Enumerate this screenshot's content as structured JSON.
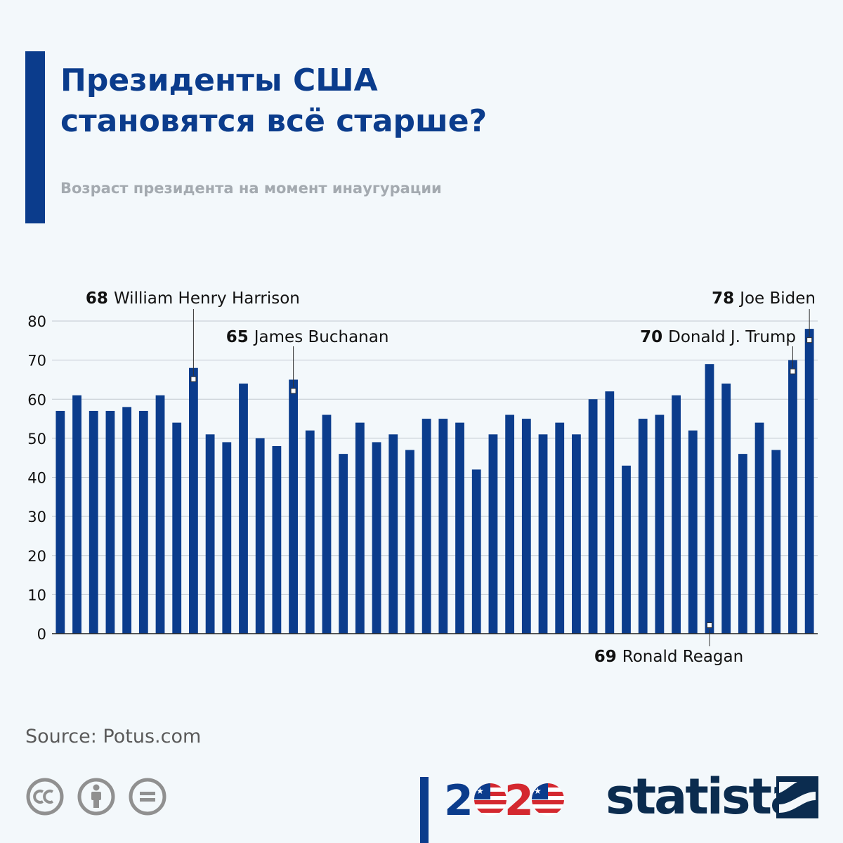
{
  "header": {
    "title": "Президенты  США\nстановятся всё старше?",
    "subtitle": "Возраст президента на момент инаугурации"
  },
  "chart_data": {
    "type": "bar",
    "title": "Президенты  США становятся всё старше?",
    "subtitle": "Возраст президента на момент инаугурации",
    "xlabel": "",
    "ylabel": "",
    "ylim": [
      0,
      80
    ],
    "yticks": [
      0,
      10,
      20,
      30,
      40,
      50,
      60,
      70,
      80
    ],
    "grid": true,
    "color": "#0b3c8c",
    "values": [
      57,
      61,
      57,
      57,
      58,
      57,
      61,
      54,
      68,
      51,
      49,
      64,
      50,
      48,
      65,
      52,
      56,
      46,
      54,
      49,
      51,
      47,
      55,
      55,
      54,
      42,
      51,
      56,
      55,
      51,
      54,
      51,
      60,
      62,
      43,
      55,
      56,
      61,
      52,
      69,
      64,
      46,
      54,
      47,
      70,
      78
    ],
    "annotations": [
      {
        "index": 8,
        "value": "68",
        "name": "William Henry Harrison",
        "position": "top"
      },
      {
        "index": 14,
        "value": "65",
        "name": "James Buchanan",
        "position": "top"
      },
      {
        "index": 39,
        "value": "69",
        "name": "Ronald Reagan",
        "position": "bottom"
      },
      {
        "index": 44,
        "value": "70",
        "name": "Donald J. Trump",
        "position": "top"
      },
      {
        "index": 45,
        "value": "78",
        "name": "Joe Biden",
        "position": "top"
      }
    ]
  },
  "footer": {
    "source": "Source: Potus.com",
    "year": "2020",
    "brand": "statista"
  },
  "icons": [
    "cc-icon",
    "attribution-icon",
    "no-derivatives-icon",
    "statista-logo-icon"
  ],
  "colors": {
    "accent": "#0b3c8c",
    "flag_red": "#d4282f",
    "brand_dark": "#0b2c4f"
  }
}
